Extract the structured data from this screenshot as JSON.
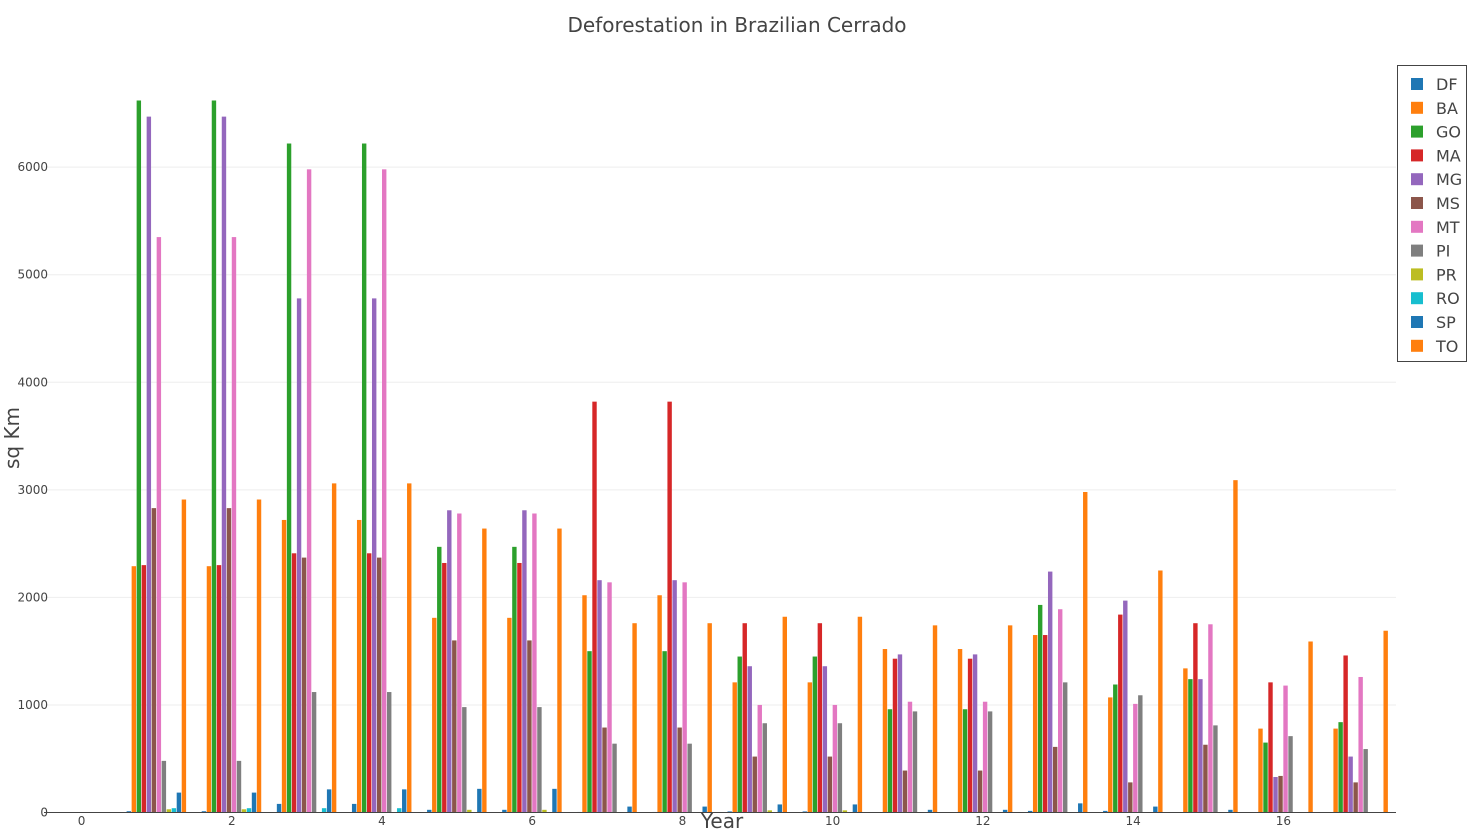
{
  "chart_data": {
    "type": "bar",
    "title": "Deforestation in Brazilian Cerrado",
    "xlabel": "Year",
    "ylabel": "sq Km",
    "x_ticks": [
      "0",
      "2",
      "4",
      "6",
      "8",
      "10",
      "12",
      "14",
      "16"
    ],
    "y_ticks": [
      "0",
      "1000",
      "2000",
      "3000",
      "4000",
      "5000",
      "6000"
    ],
    "xlim": [
      -0.5,
      17.5
    ],
    "ylim": [
      0,
      6950
    ],
    "grid": true,
    "legend_position": "top-right",
    "groups": [
      1,
      2,
      3,
      4,
      5,
      6,
      7,
      8,
      9,
      10,
      11,
      12,
      13,
      14,
      15,
      16,
      17
    ],
    "series": [
      {
        "name": "DF",
        "color": "#1f77b4",
        "values": [
          12,
          12,
          80,
          80,
          25,
          25,
          5,
          5,
          10,
          10,
          0,
          0,
          15,
          15,
          0,
          0,
          0
        ]
      },
      {
        "name": "BA",
        "color": "#ff7f0e",
        "values": [
          2290,
          2290,
          2720,
          2720,
          1810,
          1810,
          2020,
          2020,
          1210,
          1210,
          1520,
          1520,
          1650,
          1070,
          1340,
          780,
          780
        ]
      },
      {
        "name": "GO",
        "color": "#2ca02c",
        "values": [
          6620,
          6620,
          6220,
          6220,
          2470,
          2470,
          1500,
          1500,
          1450,
          1450,
          960,
          960,
          1930,
          1190,
          1240,
          650,
          840
        ]
      },
      {
        "name": "MA",
        "color": "#d62728",
        "values": [
          2300,
          2300,
          2410,
          2410,
          2320,
          2320,
          3820,
          3820,
          1760,
          1760,
          1430,
          1430,
          1650,
          1840,
          1760,
          1210,
          1460
        ]
      },
      {
        "name": "MG",
        "color": "#9467bd",
        "values": [
          6470,
          6470,
          4780,
          4780,
          2810,
          2810,
          2160,
          2160,
          1360,
          1360,
          1470,
          1470,
          2240,
          1970,
          1240,
          330,
          520
        ]
      },
      {
        "name": "MS",
        "color": "#8c564b",
        "values": [
          2830,
          2830,
          2370,
          2370,
          1600,
          1600,
          790,
          790,
          520,
          520,
          390,
          390,
          610,
          280,
          630,
          340,
          280
        ]
      },
      {
        "name": "MT",
        "color": "#e377c2",
        "values": [
          5350,
          5350,
          5980,
          5980,
          2780,
          2780,
          2140,
          2140,
          1000,
          1000,
          1030,
          1030,
          1890,
          1010,
          1750,
          1180,
          1260
        ]
      },
      {
        "name": "PI",
        "color": "#7f7f7f",
        "values": [
          480,
          480,
          1120,
          1120,
          980,
          980,
          640,
          640,
          830,
          830,
          940,
          940,
          1210,
          1090,
          810,
          710,
          590
        ]
      },
      {
        "name": "PR",
        "color": "#bcbd22",
        "values": [
          30,
          30,
          0,
          0,
          25,
          25,
          0,
          0,
          20,
          20,
          0,
          0,
          0,
          0,
          0,
          0,
          0
        ]
      },
      {
        "name": "RO",
        "color": "#17becf",
        "values": [
          40,
          40,
          40,
          40,
          0,
          0,
          0,
          0,
          0,
          0,
          0,
          0,
          0,
          0,
          0,
          0,
          0
        ]
      },
      {
        "name": "SP",
        "color": "#1f77b4",
        "values": [
          185,
          185,
          215,
          215,
          220,
          220,
          55,
          55,
          75,
          75,
          25,
          25,
          85,
          55,
          25,
          0,
          0
        ]
      },
      {
        "name": "TO",
        "color": "#ff7f0e",
        "values": [
          2910,
          2910,
          3060,
          3060,
          2640,
          2640,
          1760,
          1760,
          1820,
          1820,
          1740,
          1740,
          2980,
          2250,
          3090,
          1590,
          1690
        ]
      }
    ]
  }
}
